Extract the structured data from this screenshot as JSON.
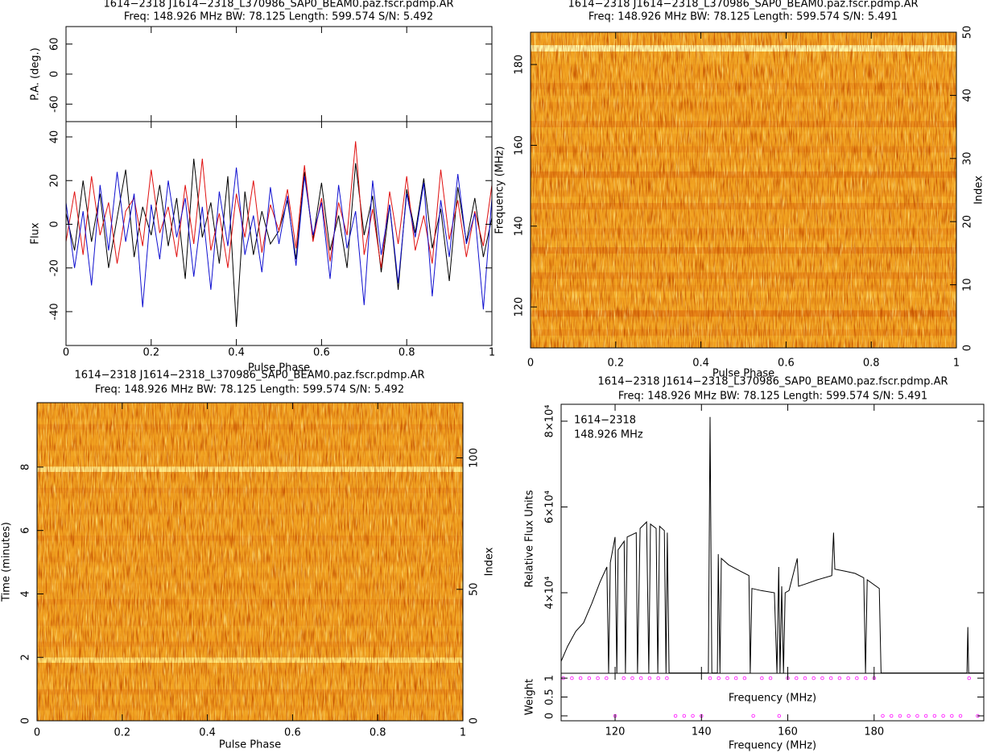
{
  "chart_data": [
    {
      "type": "line",
      "title": "1614−2318 J1614−2318_L370986_SAP0_BEAM0.paz.fscr.pdmp.AR",
      "subtitle": "Freq: 148.926 MHz BW: 78.125 Length: 599.574 S/N: 5.492",
      "xlabel": "Pulse Phase",
      "ylabel": "Flux",
      "x": [
        0,
        0.02,
        0.04,
        0.06,
        0.08,
        0.1,
        0.12,
        0.14,
        0.16,
        0.18,
        0.2,
        0.22,
        0.24,
        0.26,
        0.28,
        0.3,
        0.32,
        0.34,
        0.36,
        0.38,
        0.4,
        0.42,
        0.44,
        0.46,
        0.48,
        0.5,
        0.52,
        0.54,
        0.56,
        0.58,
        0.6,
        0.62,
        0.64,
        0.66,
        0.68,
        0.7,
        0.72,
        0.74,
        0.76,
        0.78,
        0.8,
        0.82,
        0.84,
        0.86,
        0.88,
        0.9,
        0.92,
        0.94,
        0.96,
        0.98,
        1
      ],
      "series": [
        {
          "color": "#000000",
          "values": [
            5,
            -12,
            20,
            -8,
            14,
            -20,
            3,
            25,
            -15,
            8,
            -5,
            18,
            -10,
            12,
            -25,
            30,
            -6,
            10,
            -18,
            22,
            -47,
            15,
            -14,
            6,
            -9,
            -3,
            11,
            -16,
            24,
            -7,
            19,
            -12,
            4,
            -20,
            28,
            -5,
            13,
            -22,
            9,
            -30,
            16,
            -4,
            21,
            -11,
            7,
            -26,
            17,
            -8,
            12,
            -15,
            3
          ]
        },
        {
          "color": "#e01010",
          "values": [
            -8,
            15,
            -14,
            22,
            -5,
            10,
            -18,
            6,
            12,
            -10,
            25,
            -4,
            8,
            -15,
            18,
            -9,
            30,
            -12,
            5,
            -20,
            14,
            -6,
            20,
            -13,
            9,
            -3,
            16,
            -11,
            27,
            -8,
            12,
            -17,
            10,
            -5,
            38,
            -14,
            7,
            -20,
            15,
            -9,
            22,
            -12,
            4,
            -18,
            25,
            -7,
            11,
            -15,
            6,
            -10,
            18
          ]
        },
        {
          "color": "#1010d0",
          "values": [
            10,
            -20,
            6,
            -28,
            18,
            -12,
            24,
            -8,
            14,
            -38,
            9,
            -16,
            20,
            -6,
            12,
            -24,
            8,
            -30,
            15,
            -10,
            26,
            -14,
            4,
            -22,
            17,
            -9,
            13,
            -19,
            22,
            -5,
            10,
            -25,
            18,
            -11,
            6,
            -37,
            20,
            -14,
            9,
            -27,
            14,
            -6,
            19,
            -33,
            11,
            -15,
            23,
            -9,
            5,
            -39,
            12
          ]
        }
      ],
      "xlim": [
        0,
        1
      ],
      "xticks": [
        0,
        0.2,
        0.4,
        0.6,
        0.8,
        1
      ],
      "ylim": [
        -55.5,
        47
      ],
      "yticks": [
        -40,
        -20,
        0,
        20,
        40
      ],
      "pa_panel": {
        "ylabel": "P.A. (deg.)",
        "ylim": [
          -95,
          95
        ],
        "yticks": [
          -60,
          0,
          60
        ]
      }
    },
    {
      "type": "heatmap",
      "title": "1614−2318 J1614−2318_L370986_SAP0_BEAM0.paz.fscr.pdmp.AR",
      "subtitle": "Freq: 148.926 MHz BW: 78.125 Length: 599.574 S/N: 5.491",
      "xlabel": "Pulse Phase",
      "ylabel": "Frequency (MHz)",
      "y2label": "Index",
      "xlim": [
        0,
        1
      ],
      "xticks": [
        0,
        0.2,
        0.4,
        0.6,
        0.8,
        1
      ],
      "ylim": [
        109.86,
        187.99
      ],
      "yticks": [
        120,
        140,
        160,
        180
      ],
      "y2lim": [
        0,
        50
      ],
      "y2ticks": [
        0,
        10,
        20,
        30,
        40,
        50
      ],
      "rows": [
        0.5,
        0.55,
        0.48,
        0.52,
        0.5,
        0.45,
        0.53,
        0.5,
        0.56,
        0.49,
        0.51,
        0.47,
        0.54,
        0.5,
        0.52,
        0.46,
        0.55,
        0.5,
        0.48,
        0.53,
        0.5,
        0.51,
        0.47,
        0.55,
        0.49,
        0.52,
        0.5,
        0.46,
        0.54,
        0.5,
        0.53,
        0.48,
        0.51,
        0.5,
        0.55,
        0.47,
        0.52,
        0.5,
        0.49,
        0.54,
        0.5,
        0.48,
        0.53,
        0.51,
        0.5,
        0.55,
        0.52,
        0.95,
        0.5,
        0.53
      ]
    },
    {
      "type": "heatmap",
      "title": "1614−2318 J1614−2318_L370986_SAP0_BEAM0.paz.fscr.pdmp.AR",
      "subtitle": "Freq: 148.926 MHz BW: 78.125 Length: 599.574 S/N: 5.492",
      "xlabel": "Pulse Phase",
      "ylabel": "Time (minutes)",
      "y2label": "Index",
      "xlim": [
        0,
        1
      ],
      "xticks": [
        0,
        0.2,
        0.4,
        0.6,
        0.8,
        1
      ],
      "ylim": [
        0,
        10.03
      ],
      "yticks": [
        0,
        2,
        4,
        6,
        8
      ],
      "y2lim": [
        0,
        121
      ],
      "y2ticks": [
        0,
        50,
        100
      ],
      "rows": [
        0.5,
        0.52,
        0.49,
        0.51,
        0.5,
        0.48,
        0.53,
        0.5,
        0.51,
        0.49,
        0.5,
        0.85,
        0.52,
        0.5,
        0.48,
        0.51,
        0.5,
        0.53,
        0.49,
        0.5,
        0.51,
        0.5,
        0.48,
        0.52,
        0.5,
        0.49,
        0.51,
        0.5,
        0.53,
        0.5,
        0.49,
        0.5,
        0.52,
        0.5,
        0.48,
        0.51,
        0.5,
        0.5,
        0.52,
        0.49,
        0.5,
        0.51,
        0.5,
        0.48,
        0.52,
        0.5,
        0.49,
        0.88,
        0.51,
        0.5,
        0.52,
        0.49,
        0.5,
        0.51,
        0.5,
        0.48,
        0.53,
        0.5,
        0.5,
        0.51
      ]
    },
    {
      "type": "line",
      "title": "1614−2318 J1614−2318_L370986_SAP0_BEAM0.paz.fscr.pdmp.AR",
      "subtitle": "Freq: 148.926 MHz BW: 78.125 Length: 599.574 S/N: 5.491",
      "annotations": [
        "1614−2318",
        "148.926 MHz"
      ],
      "xlabel": "Frequency (MHz)",
      "ylabel": "Relative Flux Units",
      "color": "#000000",
      "x": [
        107.5,
        109,
        110.9,
        112.7,
        114.6,
        116.5,
        118.1,
        118.5,
        118.9,
        120,
        120.4,
        120.7,
        122.1,
        122.4,
        122.8,
        124.9,
        125.2,
        125.8,
        127.3,
        127.8,
        128.2,
        129.5,
        129.9,
        130.3,
        131.4,
        131.8,
        132.1,
        132.5,
        141.6,
        142,
        142.4,
        143.7,
        143.9,
        144.3,
        144.6,
        146.3,
        149.1,
        151,
        151.3,
        151.7,
        153.8,
        156.9,
        157.5,
        157.9,
        158.2,
        158.6,
        159,
        159.4,
        160.3,
        162.2,
        162.5,
        164,
        166.8,
        170.2,
        170.6,
        170.9,
        173.4,
        175.6,
        177.6,
        178,
        178.4,
        181.2,
        181.6,
        201.5,
        201.7,
        201.9,
        205.4
      ],
      "values": [
        24000,
        27500,
        31000,
        33000,
        37500,
        42500,
        46000,
        21300,
        47000,
        53000,
        21300,
        50000,
        52000,
        21300,
        53000,
        54000,
        21300,
        55000,
        56500,
        21300,
        56000,
        55000,
        21300,
        55500,
        54500,
        21300,
        54000,
        21300,
        21300,
        81000,
        21300,
        21300,
        49000,
        21300,
        48000,
        46500,
        45000,
        44000,
        21300,
        41000,
        40500,
        40000,
        21300,
        46000,
        21300,
        41500,
        21300,
        40000,
        40500,
        48000,
        41500,
        42000,
        43000,
        44000,
        54000,
        45500,
        45000,
        44500,
        43500,
        21300,
        43000,
        41000,
        21300,
        21300,
        32000,
        21300,
        21300
      ],
      "xlim": [
        107.5,
        205.4
      ],
      "xticks": [
        120,
        140,
        160,
        180
      ],
      "ylim": [
        21220,
        83940
      ],
      "yticks": [
        {
          "value": 40000,
          "label": "4×10⁴"
        },
        {
          "value": 60000,
          "label": "6×10⁴"
        },
        {
          "value": 80000,
          "label": "8×10⁴"
        }
      ],
      "weight_panel": {
        "ylabel": "Weight",
        "xlabel": "Frequency (MHz)",
        "color": "#ff00ff",
        "x": [
          108,
          110,
          112,
          114,
          116,
          118,
          120,
          122,
          124,
          126,
          128,
          130,
          132,
          134,
          136,
          138,
          140,
          142,
          144,
          146,
          148,
          150,
          152,
          154,
          156,
          158,
          160,
          162,
          164,
          166,
          168,
          170,
          172,
          174,
          176,
          178,
          180,
          182,
          184,
          186,
          188,
          190,
          192,
          194,
          196,
          198,
          200,
          202,
          204
        ],
        "values": [
          1,
          1,
          1,
          1,
          1,
          1,
          0,
          1,
          1,
          1,
          1,
          1,
          1,
          0,
          0,
          0,
          0,
          1,
          1,
          1,
          1,
          1,
          0,
          1,
          1,
          0,
          1,
          1,
          1,
          1,
          1,
          1,
          1,
          1,
          1,
          1,
          1,
          0,
          0,
          0,
          0,
          0,
          0,
          0,
          0,
          0,
          0,
          1,
          0
        ],
        "ylim": [
          -0.13,
          1.13
        ],
        "yticks": [
          0,
          0.5,
          1
        ]
      }
    }
  ]
}
